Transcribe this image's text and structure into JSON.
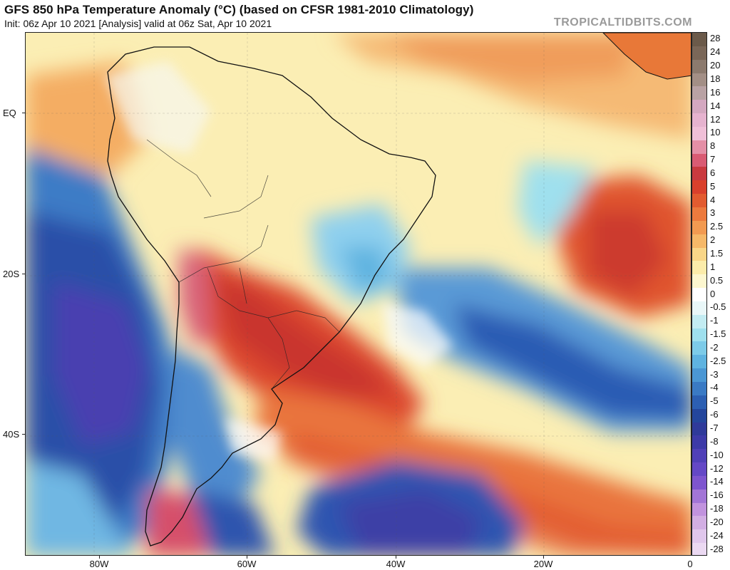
{
  "header": {
    "title": "GFS 850 hPa Temperature Anomaly (°C) (based on CFSR 1981-2010 Climatology)",
    "subtitle": "Init: 06z Apr 10 2021   [Analysis]   valid at 06z Sat, Apr 10 2021",
    "brand": "TROPICALTIDBITS.COM"
  },
  "colorbar": {
    "labels": [
      "28",
      "24",
      "20",
      "18",
      "16",
      "14",
      "12",
      "10",
      "8",
      "7",
      "6",
      "5",
      "4",
      "3",
      "2.5",
      "2",
      "1.5",
      "1",
      "0.5",
      "0",
      "-0.5",
      "-1",
      "-1.5",
      "-2",
      "-2.5",
      "-3",
      "-4",
      "-5",
      "-6",
      "-7",
      "-8",
      "-10",
      "-12",
      "-14",
      "-16",
      "-18",
      "-20",
      "-24",
      "-28"
    ],
    "colors": [
      "#6b5a4a",
      "#7a6758",
      "#8c7a6e",
      "#a38f86",
      "#b9a2a4",
      "#d4a8c0",
      "#e6b3cf",
      "#f0c0d8",
      "#e48fa6",
      "#d95b73",
      "#c93a3f",
      "#d9402c",
      "#e25b30",
      "#ec7a3e",
      "#f29a51",
      "#f6b868",
      "#f9d688",
      "#fcecaa",
      "#fdf7cf",
      "#ffffff",
      "#e9f7f8",
      "#c3ecf2",
      "#9fe0ee",
      "#7dcbe8",
      "#5fb3e0",
      "#4b97d4",
      "#3a7ac4",
      "#2c5fb2",
      "#24469c",
      "#2f3a9a",
      "#3d3aa8",
      "#5040b8",
      "#6448c6",
      "#7e55cf",
      "#a275d6",
      "#c193de",
      "#d2aee3",
      "#e0c7ec",
      "#ebd9f2"
    ]
  },
  "axes": {
    "lon_labels": [
      "80W",
      "60W",
      "40W",
      "20W",
      "0"
    ],
    "lat_labels": [
      "EQ",
      "20S",
      "40S"
    ]
  },
  "map_data": {
    "region": "South America and South Atlantic",
    "lon_range": [
      -90,
      0
    ],
    "lat_range": [
      5,
      -55
    ],
    "variable": "850 hPa temperature anomaly",
    "units": "°C",
    "notable_features": [
      "warm anomaly over Argentina/Paraguay/southern Brazil",
      "cold anomaly over southeast Pacific",
      "cold anomaly over south Atlantic",
      "warm anomaly over central South Atlantic"
    ]
  }
}
